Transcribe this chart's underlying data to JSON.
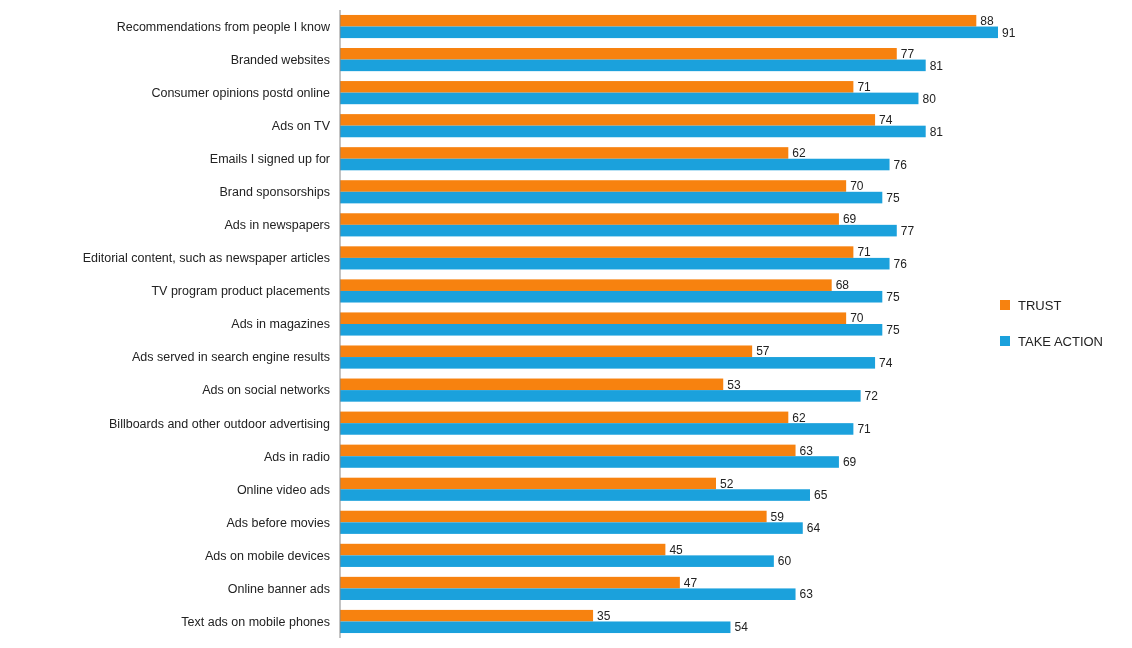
{
  "chart_data": {
    "type": "bar",
    "orientation": "horizontal",
    "categories": [
      "Recommendations from people I know",
      "Branded websites",
      "Consumer opinions postd online",
      "Ads on TV",
      "Emails I signed up for",
      "Brand sponsorships",
      "Ads in newspapers",
      "Editorial content, such as newspaper articles",
      "TV program product placements",
      "Ads in magazines",
      "Ads served in search engine results",
      "Ads on social networks",
      "Billboards and other outdoor advertising",
      "Ads in radio",
      "Online video ads",
      "Ads before movies",
      "Ads on mobile devices",
      "Online banner ads",
      "Text ads on mobile phones"
    ],
    "series": [
      {
        "name": "TRUST",
        "color": "#f7820f",
        "values": [
          88,
          77,
          71,
          74,
          62,
          70,
          69,
          71,
          68,
          70,
          57,
          53,
          62,
          63,
          52,
          59,
          45,
          47,
          35
        ]
      },
      {
        "name": "TAKE ACTION",
        "color": "#1ba1dc",
        "values": [
          91,
          81,
          80,
          81,
          76,
          75,
          77,
          76,
          75,
          75,
          74,
          72,
          71,
          69,
          65,
          64,
          60,
          63,
          54
        ]
      }
    ],
    "data_labels": true,
    "legend": "right"
  }
}
